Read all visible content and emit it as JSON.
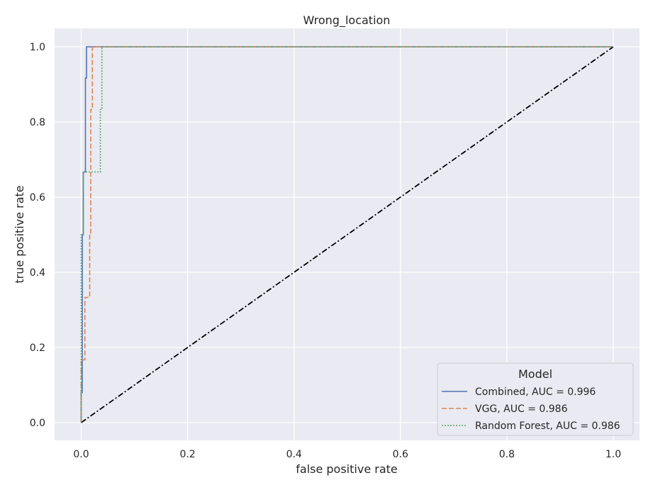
{
  "chart_data": {
    "type": "line",
    "title": "Wrong_location",
    "xlabel": "false positive rate",
    "ylabel": "true positive rate",
    "xlim": [
      -0.05,
      1.05
    ],
    "ylim": [
      -0.05,
      1.05
    ],
    "xticks": [
      0.0,
      0.2,
      0.4,
      0.6,
      0.8,
      1.0
    ],
    "xtick_labels": [
      "0.0",
      "0.2",
      "0.4",
      "0.6",
      "0.8",
      "1.0"
    ],
    "yticks": [
      0.0,
      0.2,
      0.4,
      0.6,
      0.8,
      1.0
    ],
    "ytick_labels": [
      "0.0",
      "0.2",
      "0.4",
      "0.6",
      "0.8",
      "1.0"
    ],
    "grid": true,
    "background": "#eaeaf2",
    "legend": {
      "title": "Model",
      "placement": "lower-right"
    },
    "series": [
      {
        "name": "Combined, AUC = 0.996",
        "color": "#4c72b0",
        "dash": "solid",
        "x": [
          0.0,
          0.0,
          0.002,
          0.002,
          0.004,
          0.004,
          0.006,
          0.006,
          0.008,
          0.008,
          0.01,
          0.01,
          1.0
        ],
        "y": [
          0.0,
          0.08,
          0.08,
          0.5,
          0.5,
          0.667,
          0.667,
          0.667,
          0.667,
          0.917,
          0.917,
          1.0,
          1.0
        ]
      },
      {
        "name": "VGG, AUC = 0.986",
        "color": "#dd8452",
        "dash": "dashed",
        "x": [
          0.0,
          0.0,
          0.007,
          0.007,
          0.009,
          0.009,
          0.016,
          0.016,
          0.018,
          0.018,
          0.021,
          0.021,
          1.0
        ],
        "y": [
          0.0,
          0.167,
          0.167,
          0.333,
          0.333,
          0.333,
          0.333,
          0.5,
          0.5,
          0.833,
          0.833,
          1.0,
          1.0
        ]
      },
      {
        "name": "Random Forest, AUC = 0.986",
        "color": "#55a868",
        "dash": "dotted",
        "x": [
          0.0,
          0.0,
          0.004,
          0.004,
          0.006,
          0.006,
          0.036,
          0.036,
          0.039,
          0.039,
          1.0
        ],
        "y": [
          0.0,
          0.5,
          0.5,
          0.667,
          0.667,
          0.667,
          0.667,
          0.833,
          0.833,
          1.0,
          1.0
        ]
      },
      {
        "color": "#000000",
        "dash": "dashdot",
        "x": [
          0.0,
          1.0
        ],
        "y": [
          0.0,
          1.0
        ]
      }
    ]
  }
}
